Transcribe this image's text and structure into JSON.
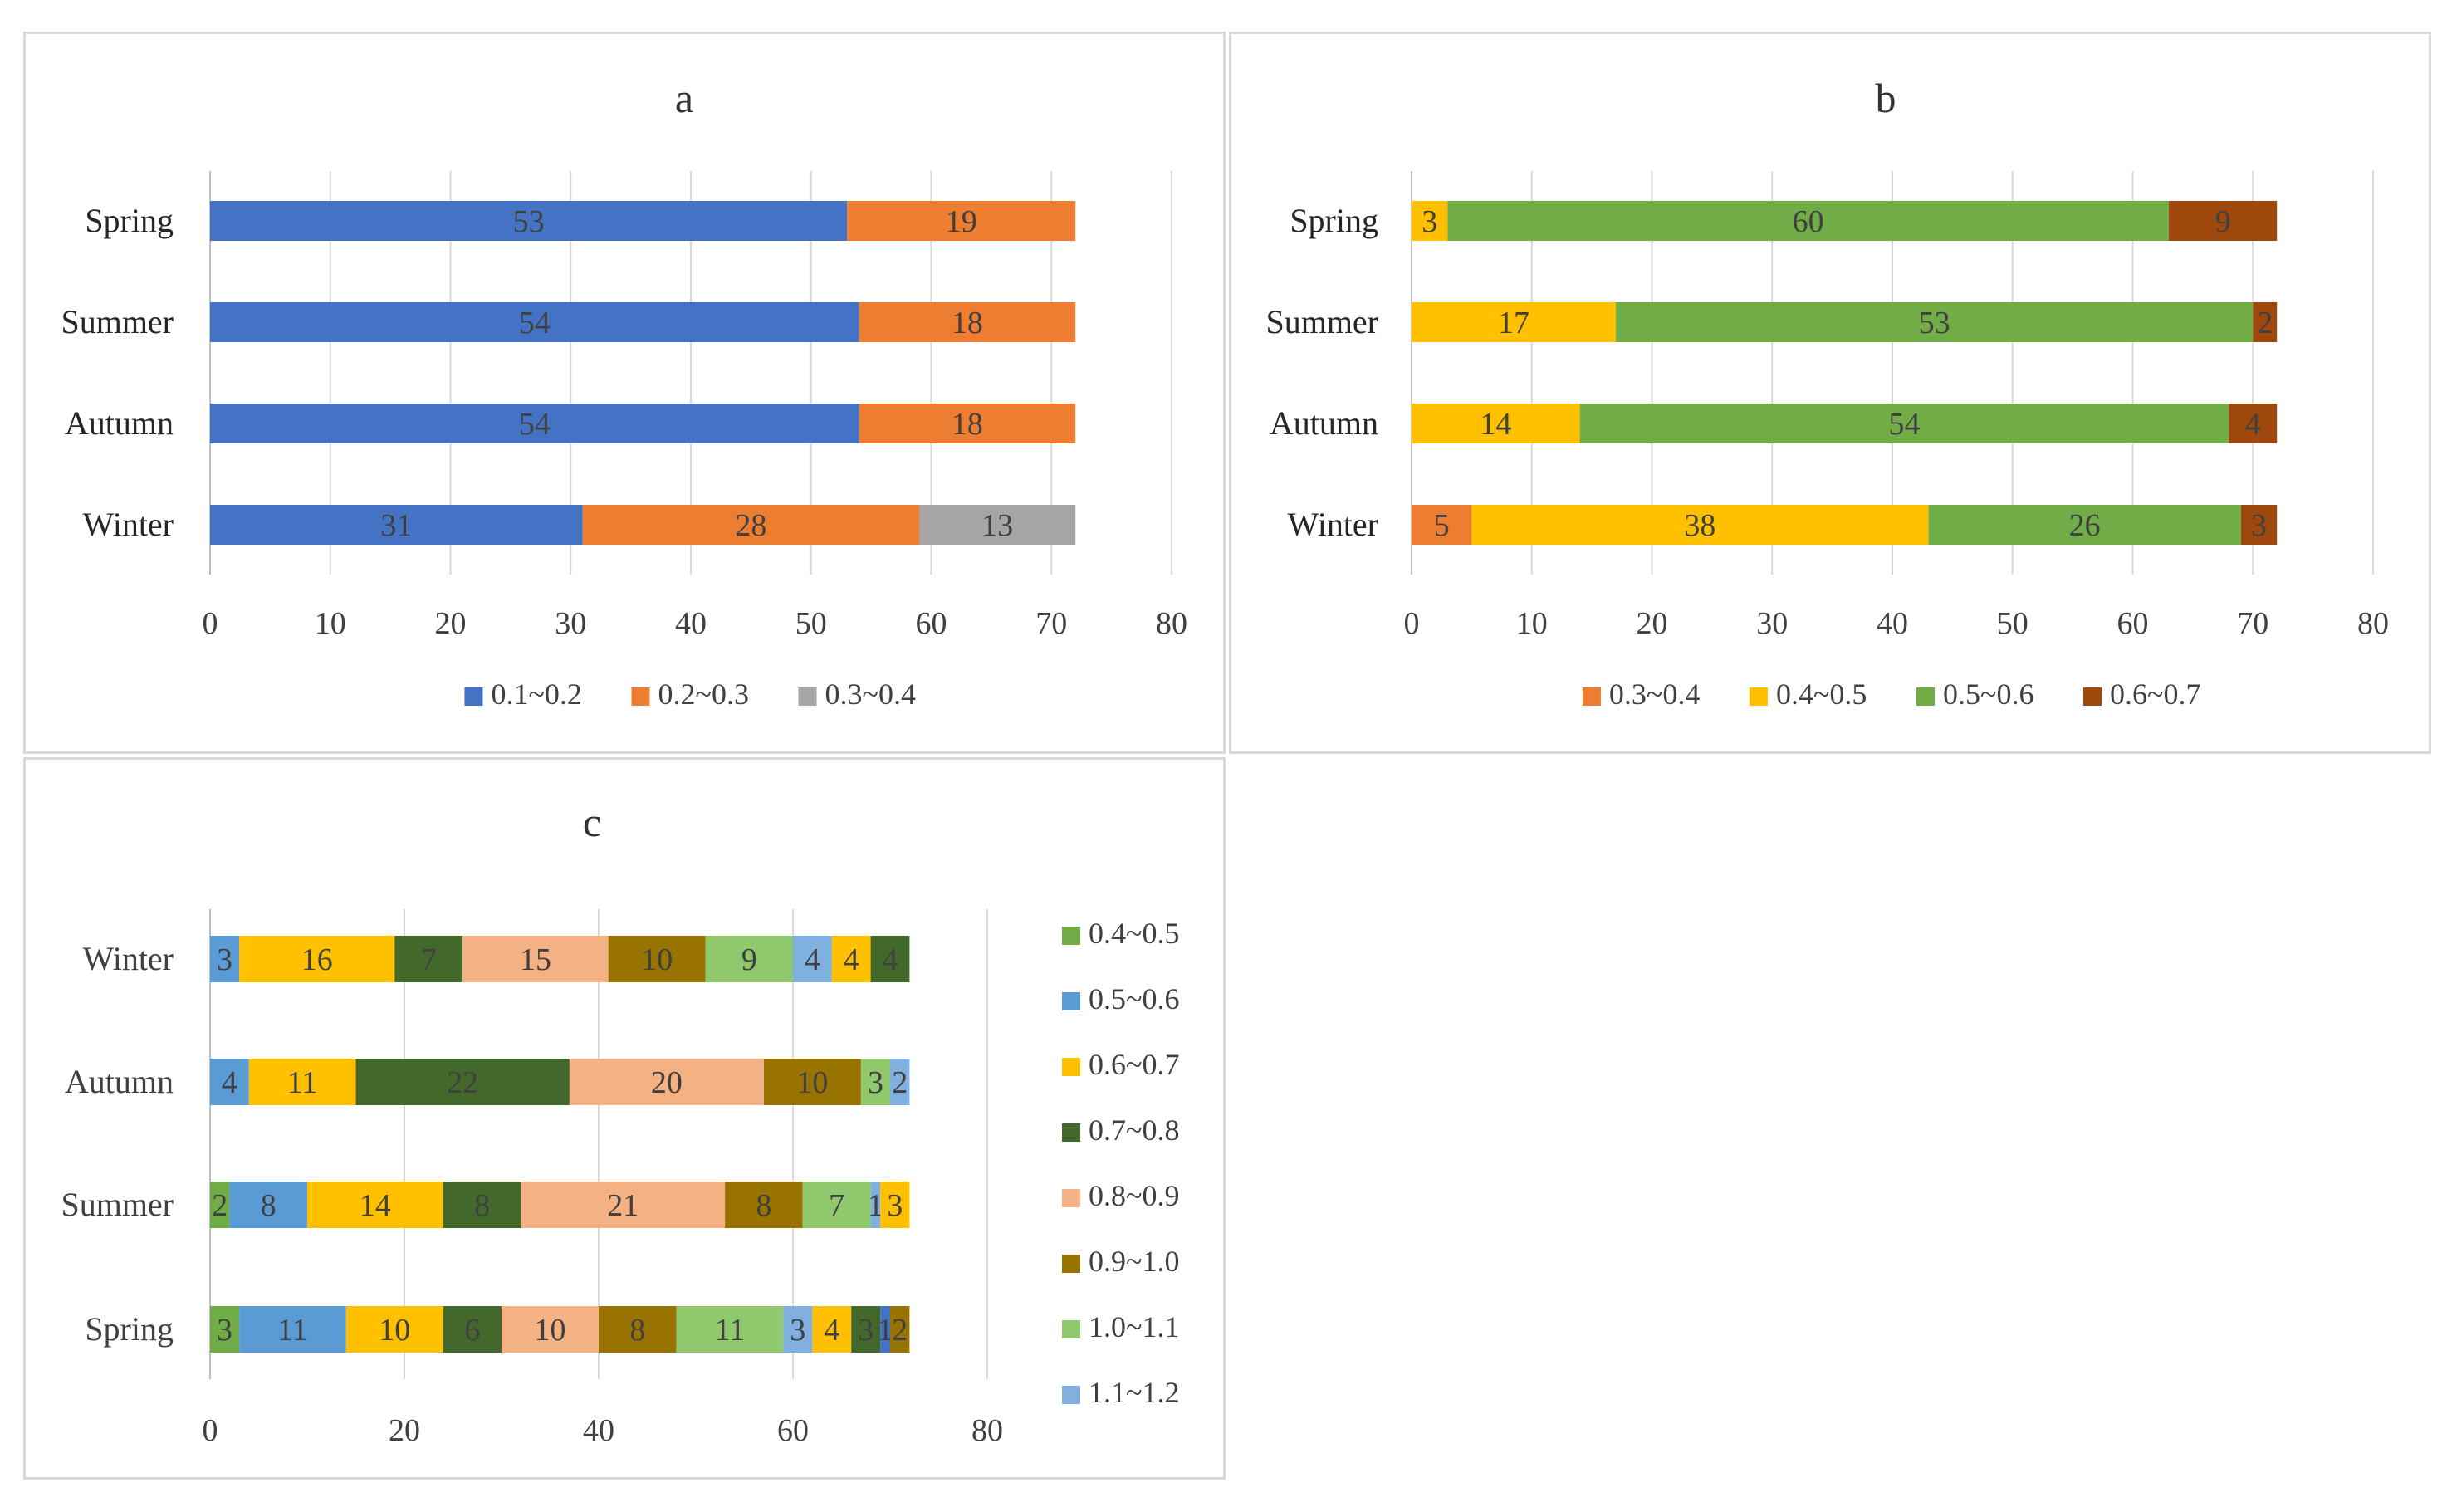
{
  "chart_data": [
    {
      "id": "a",
      "type": "bar",
      "orientation": "horizontal",
      "stacked": true,
      "title": "a",
      "categories": [
        "Spring",
        "Summer",
        "Autumn",
        "Winter"
      ],
      "series": [
        {
          "name": "0.1~0.2",
          "color": "#4472c4",
          "values": [
            53,
            54,
            54,
            31
          ]
        },
        {
          "name": "0.2~0.3",
          "color": "#ed7d31",
          "values": [
            19,
            18,
            18,
            28
          ]
        },
        {
          "name": "0.3~0.4",
          "color": "#a5a5a5",
          "values": [
            0,
            0,
            0,
            13
          ]
        }
      ],
      "xlim": [
        0,
        80
      ],
      "xticks": [
        0,
        10,
        20,
        30,
        40,
        50,
        60,
        70,
        80
      ],
      "legend": "bottom"
    },
    {
      "id": "b",
      "type": "bar",
      "orientation": "horizontal",
      "stacked": true,
      "title": "b",
      "categories": [
        "Spring",
        "Summer",
        "Autumn",
        "Winter"
      ],
      "series": [
        {
          "name": "0.3~0.4",
          "color": "#ed7d31",
          "values": [
            0,
            0,
            0,
            5
          ]
        },
        {
          "name": "0.4~0.5",
          "color": "#ffc000",
          "values": [
            3,
            17,
            14,
            38
          ]
        },
        {
          "name": "0.5~0.6",
          "color": "#70ad47",
          "values": [
            60,
            53,
            54,
            26
          ]
        },
        {
          "name": "0.6~0.7",
          "color": "#9e480e",
          "values": [
            9,
            2,
            4,
            3
          ]
        }
      ],
      "xlim": [
        0,
        80
      ],
      "xticks": [
        0,
        10,
        20,
        30,
        40,
        50,
        60,
        70,
        80
      ],
      "legend": "bottom"
    },
    {
      "id": "c",
      "type": "bar",
      "orientation": "horizontal",
      "stacked": true,
      "title": "c",
      "categories": [
        "Winter",
        "Autumn",
        "Summer",
        "Spring"
      ],
      "legend_entries": [
        {
          "name": "0.4~0.5",
          "color": "#70ad47"
        },
        {
          "name": "0.5~0.6",
          "color": "#5b9bd5"
        },
        {
          "name": "0.6~0.7",
          "color": "#ffc000"
        },
        {
          "name": "0.7~0.8",
          "color": "#43682b"
        },
        {
          "name": "0.8~0.9",
          "color": "#f4b183"
        },
        {
          "name": "0.9~1.0",
          "color": "#997300"
        },
        {
          "name": "1.0~1.1",
          "color": "#8fc86d"
        },
        {
          "name": "1.1~1.2",
          "color": "#7fb0e0"
        }
      ],
      "rows": [
        {
          "category": "Winter",
          "segments": [
            {
              "value": 3,
              "color": "#5b9bd5"
            },
            {
              "value": 16,
              "color": "#ffc000"
            },
            {
              "value": 7,
              "color": "#43682b"
            },
            {
              "value": 15,
              "color": "#f4b183"
            },
            {
              "value": 10,
              "color": "#997300"
            },
            {
              "value": 9,
              "color": "#8fc86d"
            },
            {
              "value": 4,
              "color": "#7fb0e0"
            },
            {
              "value": 4,
              "color": "#ffc000"
            },
            {
              "value": 4,
              "color": "#43682b"
            }
          ]
        },
        {
          "category": "Autumn",
          "segments": [
            {
              "value": 4,
              "color": "#5b9bd5"
            },
            {
              "value": 11,
              "color": "#ffc000"
            },
            {
              "value": 22,
              "color": "#43682b"
            },
            {
              "value": 20,
              "color": "#f4b183"
            },
            {
              "value": 10,
              "color": "#997300"
            },
            {
              "value": 3,
              "color": "#8fc86d"
            },
            {
              "value": 2,
              "color": "#7fb0e0"
            }
          ]
        },
        {
          "category": "Summer",
          "segments": [
            {
              "value": 2,
              "color": "#70ad47"
            },
            {
              "value": 8,
              "color": "#5b9bd5"
            },
            {
              "value": 14,
              "color": "#ffc000"
            },
            {
              "value": 8,
              "color": "#43682b"
            },
            {
              "value": 21,
              "color": "#f4b183"
            },
            {
              "value": 8,
              "color": "#997300"
            },
            {
              "value": 7,
              "color": "#8fc86d"
            },
            {
              "value": 1,
              "color": "#7fb0e0"
            },
            {
              "value": 3,
              "color": "#ffc000"
            }
          ]
        },
        {
          "category": "Spring",
          "segments": [
            {
              "value": 3,
              "color": "#70ad47"
            },
            {
              "value": 11,
              "color": "#5b9bd5"
            },
            {
              "value": 10,
              "color": "#ffc000"
            },
            {
              "value": 6,
              "color": "#43682b"
            },
            {
              "value": 10,
              "color": "#f4b183"
            },
            {
              "value": 8,
              "color": "#997300"
            },
            {
              "value": 11,
              "color": "#8fc86d"
            },
            {
              "value": 3,
              "color": "#7fb0e0"
            },
            {
              "value": 4,
              "color": "#ffc000"
            },
            {
              "value": 3,
              "color": "#43682b"
            },
            {
              "value": 1,
              "color": "#4472c4"
            },
            {
              "value": 2,
              "color": "#997300"
            }
          ]
        }
      ],
      "xlim": [
        0,
        80
      ],
      "xticks": [
        0,
        20,
        40,
        60,
        80
      ],
      "legend": "right"
    }
  ]
}
